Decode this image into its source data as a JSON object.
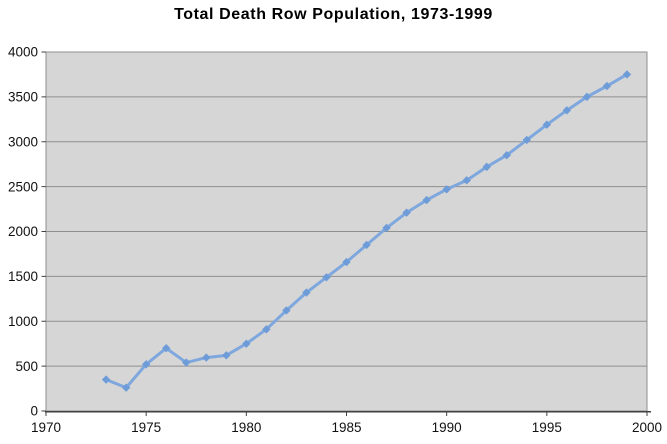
{
  "chart_data": {
    "type": "line",
    "title": "Total Death Row Population, 1973-1999",
    "series_name": "Total death row population",
    "x": [
      1973,
      1974,
      1975,
      1976,
      1977,
      1978,
      1979,
      1980,
      1981,
      1982,
      1983,
      1984,
      1985,
      1986,
      1987,
      1988,
      1989,
      1990,
      1991,
      1992,
      1993,
      1994,
      1995,
      1996,
      1997,
      1998,
      1999
    ],
    "values": [
      350,
      260,
      520,
      700,
      540,
      595,
      620,
      750,
      910,
      1120,
      1320,
      1490,
      1660,
      1850,
      2040,
      2210,
      2350,
      2470,
      2570,
      2720,
      2850,
      3020,
      3190,
      3350,
      3500,
      3620,
      3750
    ],
    "xlim": [
      1970,
      2000
    ],
    "ylim": [
      0,
      4000
    ],
    "xticks": [
      1970,
      1975,
      1980,
      1985,
      1990,
      1995,
      2000
    ],
    "yticks": [
      0,
      500,
      1000,
      1500,
      2000,
      2500,
      3000,
      3500,
      4000
    ],
    "xlabel": "",
    "ylabel": "",
    "legend": "none",
    "grid": "horizontal",
    "marker": "diamond",
    "colors": {
      "line": "#7ea7de",
      "marker": "#6d9cd8",
      "plot_background": "#d6d6d6",
      "gridline": "#8f8f8f",
      "plot_border": "#8f8f8f",
      "axis_line": "#404040",
      "tick": "#404040",
      "label_text": "#111111",
      "title_text": "#000000",
      "page_background": "#ffffff"
    }
  }
}
